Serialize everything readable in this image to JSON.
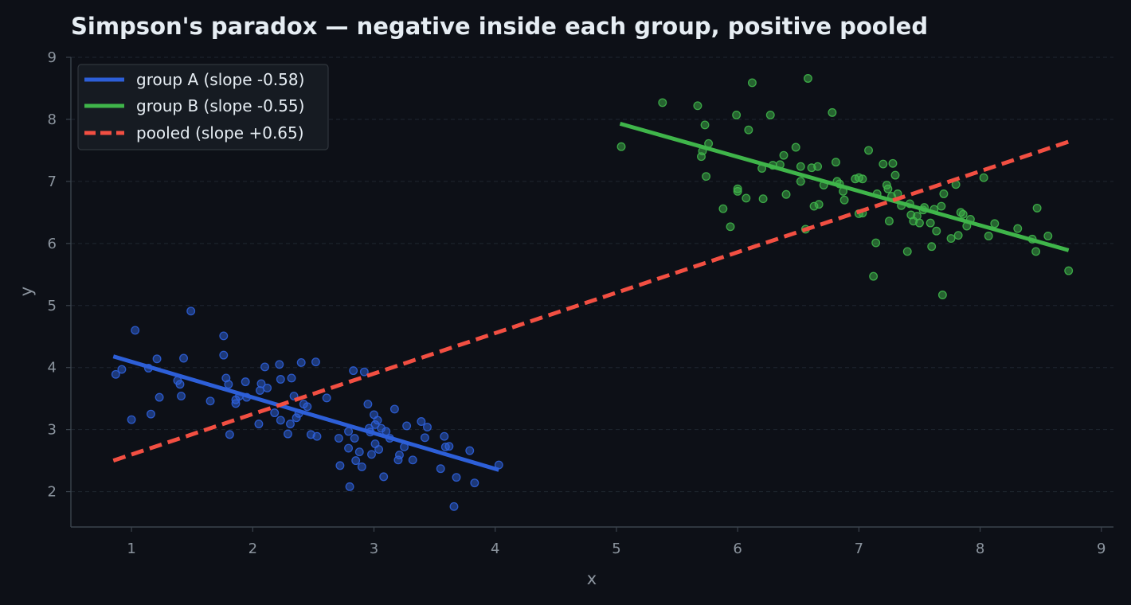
{
  "chart_data": {
    "type": "scatter",
    "title": "Simpson's paradox — negative inside each group, positive pooled",
    "xlabel": "x",
    "ylabel": "y",
    "xlim": [
      0.5,
      9.1
    ],
    "ylim": [
      1.43,
      9.0
    ],
    "xticks": [
      1,
      2,
      3,
      4,
      5,
      6,
      7,
      8,
      9
    ],
    "yticks": [
      2,
      3,
      4,
      5,
      6,
      7,
      8,
      9
    ],
    "grid": "horizontal dashed",
    "legend_position": "top-left",
    "series": [
      {
        "name": "group A (slope -0.58)",
        "kind": "points",
        "color": "#2d5fd8",
        "points": [
          [
            0.87,
            3.89
          ],
          [
            0.92,
            3.97
          ],
          [
            1.0,
            3.16
          ],
          [
            1.03,
            4.6
          ],
          [
            1.14,
            3.99
          ],
          [
            1.16,
            3.25
          ],
          [
            1.21,
            4.14
          ],
          [
            1.23,
            3.52
          ],
          [
            1.38,
            3.79
          ],
          [
            1.4,
            3.73
          ],
          [
            1.41,
            3.54
          ],
          [
            1.43,
            4.15
          ],
          [
            1.49,
            4.91
          ],
          [
            1.65,
            3.46
          ],
          [
            1.76,
            4.51
          ],
          [
            1.76,
            4.2
          ],
          [
            1.78,
            3.83
          ],
          [
            1.8,
            3.73
          ],
          [
            1.81,
            2.92
          ],
          [
            1.86,
            3.42
          ],
          [
            1.86,
            3.48
          ],
          [
            1.89,
            3.54
          ],
          [
            1.94,
            3.77
          ],
          [
            1.95,
            3.52
          ],
          [
            2.05,
            3.09
          ],
          [
            2.06,
            3.63
          ],
          [
            2.07,
            3.74
          ],
          [
            2.1,
            4.01
          ],
          [
            2.12,
            3.67
          ],
          [
            2.18,
            3.27
          ],
          [
            2.22,
            4.05
          ],
          [
            2.23,
            3.81
          ],
          [
            2.23,
            3.15
          ],
          [
            2.29,
            2.93
          ],
          [
            2.31,
            3.09
          ],
          [
            2.32,
            3.83
          ],
          [
            2.34,
            3.54
          ],
          [
            2.36,
            3.19
          ],
          [
            2.38,
            3.26
          ],
          [
            2.4,
            4.08
          ],
          [
            2.42,
            3.41
          ],
          [
            2.45,
            3.37
          ],
          [
            2.48,
            2.92
          ],
          [
            2.52,
            4.09
          ],
          [
            2.53,
            2.89
          ],
          [
            2.61,
            3.51
          ],
          [
            2.71,
            2.86
          ],
          [
            2.72,
            2.42
          ],
          [
            2.79,
            2.97
          ],
          [
            2.79,
            2.7
          ],
          [
            2.8,
            2.08
          ],
          [
            2.83,
            3.95
          ],
          [
            2.84,
            2.86
          ],
          [
            2.85,
            2.5
          ],
          [
            2.88,
            2.64
          ],
          [
            2.9,
            2.4
          ],
          [
            2.92,
            3.93
          ],
          [
            2.95,
            3.41
          ],
          [
            2.96,
            3.02
          ],
          [
            2.97,
            2.96
          ],
          [
            2.98,
            2.6
          ],
          [
            3.0,
            3.24
          ],
          [
            3.01,
            3.08
          ],
          [
            3.01,
            2.77
          ],
          [
            3.03,
            3.15
          ],
          [
            3.04,
            2.68
          ],
          [
            3.06,
            3.02
          ],
          [
            3.08,
            2.24
          ],
          [
            3.1,
            2.97
          ],
          [
            3.13,
            2.86
          ],
          [
            3.17,
            3.33
          ],
          [
            3.2,
            2.51
          ],
          [
            3.21,
            2.59
          ],
          [
            3.25,
            2.72
          ],
          [
            3.27,
            3.06
          ],
          [
            3.32,
            2.51
          ],
          [
            3.39,
            3.13
          ],
          [
            3.42,
            2.87
          ],
          [
            3.44,
            3.04
          ],
          [
            3.55,
            2.37
          ],
          [
            3.58,
            2.89
          ],
          [
            3.59,
            2.72
          ],
          [
            3.62,
            2.73
          ],
          [
            3.66,
            1.76
          ],
          [
            3.68,
            2.23
          ],
          [
            3.79,
            2.66
          ],
          [
            3.83,
            2.14
          ],
          [
            4.03,
            2.43
          ]
        ]
      },
      {
        "name": "group B (slope -0.55)",
        "kind": "points",
        "color": "#3fb54a",
        "points": [
          [
            5.04,
            7.56
          ],
          [
            5.38,
            8.27
          ],
          [
            5.67,
            8.22
          ],
          [
            5.7,
            7.4
          ],
          [
            5.71,
            7.49
          ],
          [
            5.73,
            7.91
          ],
          [
            5.74,
            7.08
          ],
          [
            5.76,
            7.61
          ],
          [
            5.88,
            6.56
          ],
          [
            5.94,
            6.27
          ],
          [
            5.99,
            8.07
          ],
          [
            6.0,
            6.84
          ],
          [
            6.0,
            6.88
          ],
          [
            6.07,
            6.73
          ],
          [
            6.09,
            7.83
          ],
          [
            6.12,
            8.59
          ],
          [
            6.2,
            7.21
          ],
          [
            6.21,
            6.72
          ],
          [
            6.27,
            8.07
          ],
          [
            6.29,
            7.26
          ],
          [
            6.35,
            7.27
          ],
          [
            6.38,
            7.42
          ],
          [
            6.4,
            6.79
          ],
          [
            6.48,
            7.55
          ],
          [
            6.52,
            7.24
          ],
          [
            6.52,
            7.0
          ],
          [
            6.56,
            6.23
          ],
          [
            6.58,
            8.66
          ],
          [
            6.61,
            7.22
          ],
          [
            6.63,
            6.6
          ],
          [
            6.66,
            7.24
          ],
          [
            6.67,
            6.63
          ],
          [
            6.71,
            6.94
          ],
          [
            6.78,
            8.11
          ],
          [
            6.81,
            7.31
          ],
          [
            6.82,
            7.0
          ],
          [
            6.84,
            6.96
          ],
          [
            6.87,
            6.84
          ],
          [
            6.88,
            6.7
          ],
          [
            6.97,
            7.04
          ],
          [
            7.0,
            7.06
          ],
          [
            7.0,
            6.48
          ],
          [
            7.03,
            7.04
          ],
          [
            7.03,
            6.49
          ],
          [
            7.08,
            7.5
          ],
          [
            7.14,
            6.01
          ],
          [
            7.15,
            6.8
          ],
          [
            7.2,
            7.28
          ],
          [
            7.23,
            6.94
          ],
          [
            7.24,
            6.88
          ],
          [
            7.25,
            6.36
          ],
          [
            7.27,
            6.76
          ],
          [
            7.28,
            7.29
          ],
          [
            7.3,
            7.1
          ],
          [
            7.32,
            6.8
          ],
          [
            7.35,
            6.61
          ],
          [
            7.4,
            5.87
          ],
          [
            7.42,
            6.64
          ],
          [
            7.43,
            6.46
          ],
          [
            7.45,
            6.36
          ],
          [
            7.48,
            6.44
          ],
          [
            7.5,
            6.33
          ],
          [
            7.53,
            6.54
          ],
          [
            7.54,
            6.58
          ],
          [
            7.59,
            6.33
          ],
          [
            7.6,
            5.95
          ],
          [
            7.62,
            6.55
          ],
          [
            7.64,
            6.2
          ],
          [
            7.68,
            6.6
          ],
          [
            7.7,
            6.8
          ],
          [
            7.76,
            6.08
          ],
          [
            7.8,
            6.95
          ],
          [
            7.82,
            6.13
          ],
          [
            7.84,
            6.5
          ],
          [
            7.86,
            6.47
          ],
          [
            7.89,
            6.28
          ],
          [
            7.92,
            6.39
          ],
          [
            7.12,
            5.47
          ],
          [
            7.69,
            5.17
          ],
          [
            8.03,
            7.06
          ],
          [
            8.07,
            6.12
          ],
          [
            8.12,
            6.32
          ],
          [
            8.31,
            6.24
          ],
          [
            8.43,
            6.07
          ],
          [
            8.46,
            5.87
          ],
          [
            8.47,
            6.57
          ],
          [
            8.56,
            6.12
          ],
          [
            8.73,
            5.56
          ]
        ]
      },
      {
        "name": "group A (slope -0.58)",
        "kind": "fit",
        "color": "#2d5fd8",
        "dashed": false,
        "points": [
          [
            0.85,
            4.18
          ],
          [
            4.03,
            2.35
          ]
        ]
      },
      {
        "name": "group B (slope -0.55)",
        "kind": "fit",
        "color": "#3fb54a",
        "dashed": false,
        "points": [
          [
            5.03,
            7.93
          ],
          [
            8.73,
            5.89
          ]
        ]
      },
      {
        "name": "pooled (slope +0.65)",
        "kind": "fit",
        "color": "#f24f42",
        "dashed": true,
        "points": [
          [
            0.85,
            2.5
          ],
          [
            8.73,
            7.64
          ]
        ]
      }
    ]
  }
}
